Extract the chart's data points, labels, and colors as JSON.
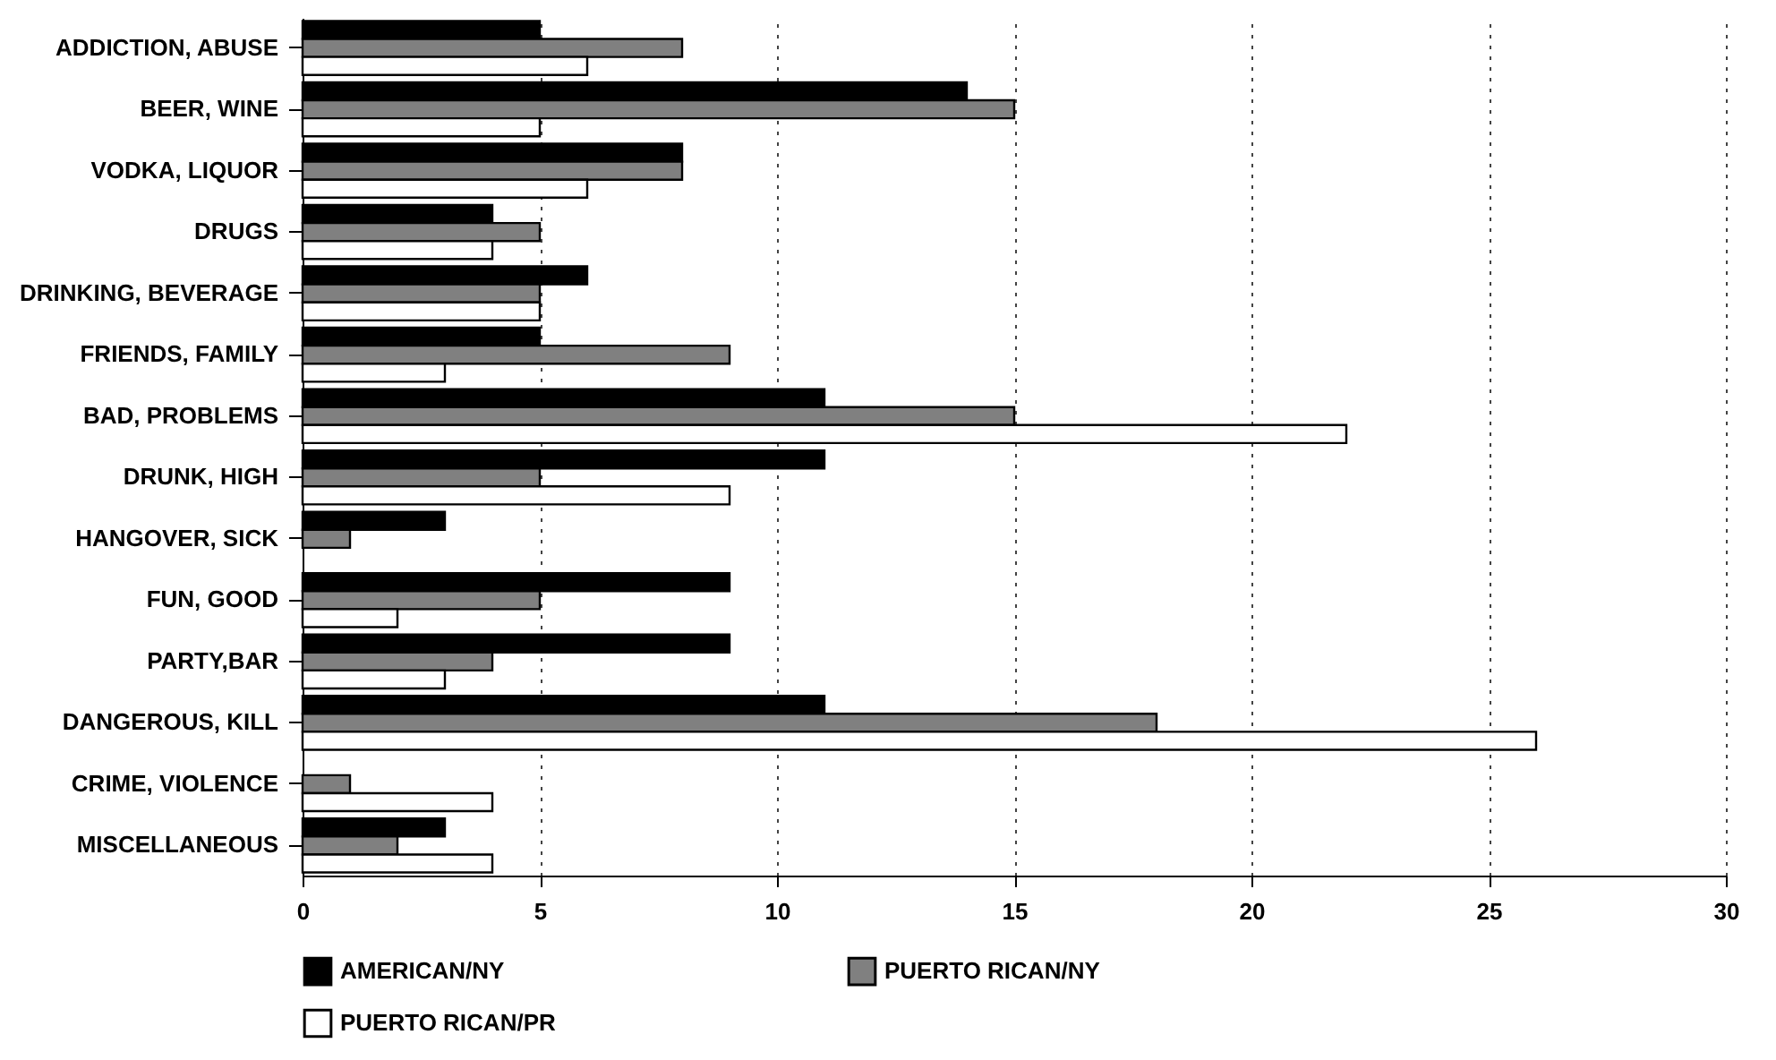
{
  "chart_data": {
    "type": "bar",
    "orientation": "horizontal",
    "categories": [
      "ADDICTION, ABUSE",
      "BEER, WINE",
      "VODKA, LIQUOR",
      "DRUGS",
      "DRINKING, BEVERAGE",
      "FRIENDS, FAMILY",
      "BAD, PROBLEMS",
      "DRUNK, HIGH",
      "HANGOVER, SICK",
      "FUN, GOOD",
      "PARTY,BAR",
      "DANGEROUS, KILL",
      "CRIME, VIOLENCE",
      "MISCELLANEOUS"
    ],
    "series": [
      {
        "name": "AMERICAN/NY",
        "color": "#000000",
        "values": [
          5,
          14,
          8,
          4,
          6,
          5,
          11,
          11,
          3,
          9,
          9,
          11,
          0,
          3
        ]
      },
      {
        "name": "PUERTO RICAN/NY",
        "color": "#808080",
        "values": [
          8,
          15,
          8,
          5,
          5,
          9,
          15,
          5,
          1,
          5,
          4,
          18,
          1,
          2
        ]
      },
      {
        "name": "PUERTO RICAN/PR",
        "color": "#ffffff",
        "values": [
          6,
          5,
          6,
          4,
          5,
          3,
          22,
          9,
          0,
          2,
          3,
          26,
          4,
          4
        ]
      }
    ],
    "xlim": [
      0,
      30
    ],
    "xticks": [
      0,
      5,
      10,
      15,
      20,
      25,
      30
    ],
    "grid": "x",
    "legend": "bottom"
  }
}
